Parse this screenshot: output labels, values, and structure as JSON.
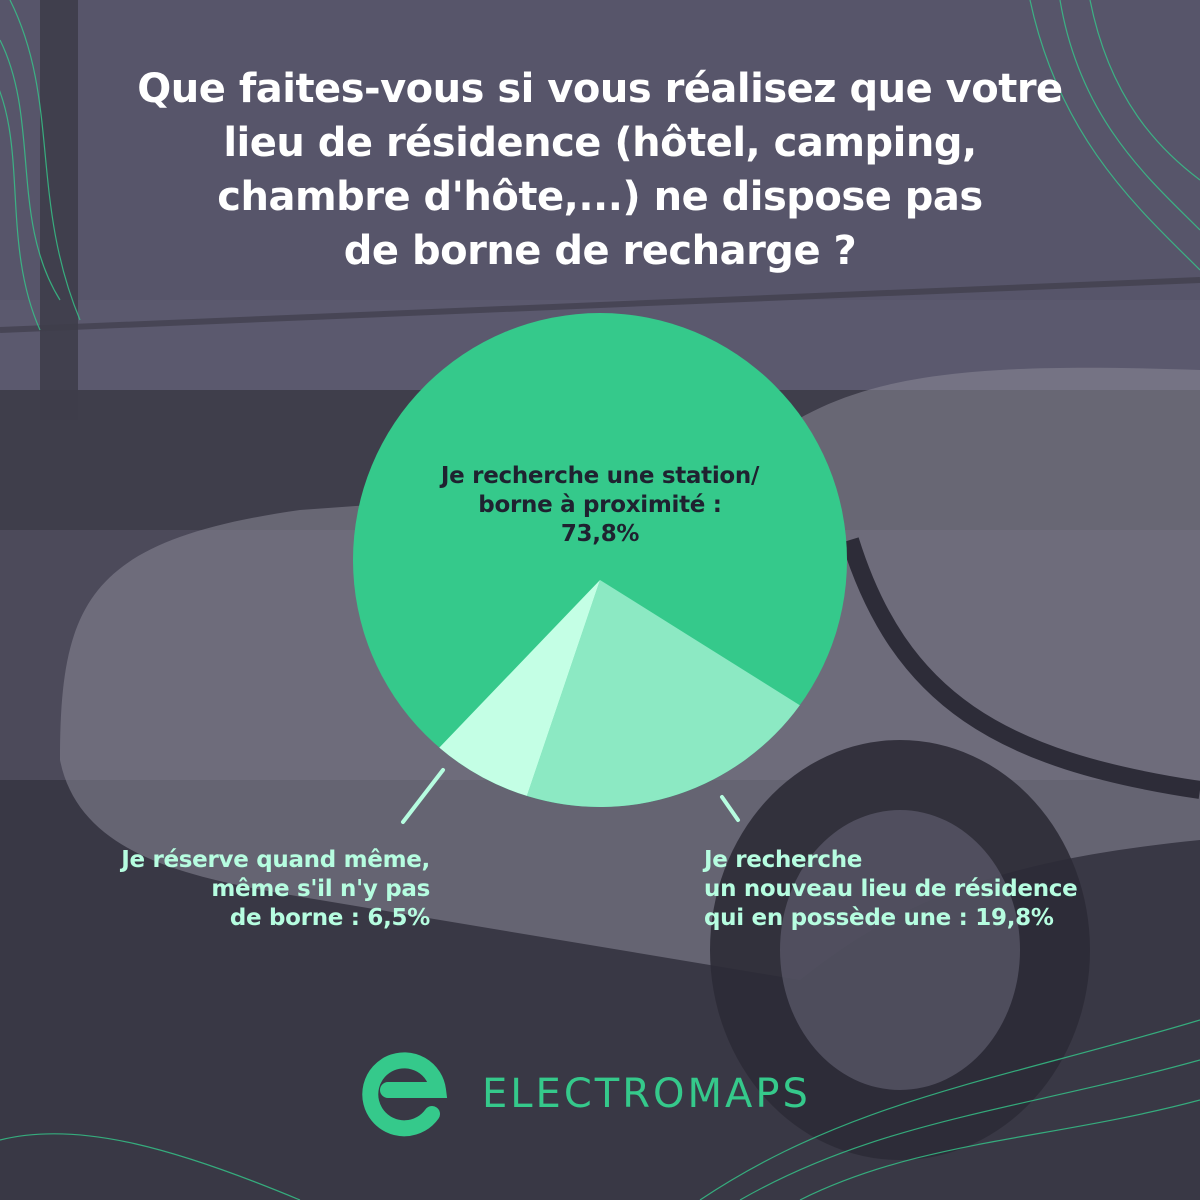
{
  "header": {
    "title_lines": [
      "Que faites-vous si vous réalisez que votre",
      "lieu de résidence (hôtel, camping,",
      "chambre d'hôte,...) ne dispose pas",
      "de borne de recharge ?"
    ]
  },
  "chart_data": {
    "type": "pie",
    "slices": [
      {
        "label": "Je recherche une station/ borne à proximité",
        "value": 73.8,
        "color": "#35c98b"
      },
      {
        "label": "Je recherche un nouveau lieu de résidence qui en possède une",
        "value": 19.8,
        "color": "#8ce9c3"
      },
      {
        "label": "Je réserve quand même, même s'il n'y pas de borne",
        "value": 6.5,
        "color": "#c4ffe5"
      }
    ]
  },
  "labels": {
    "main": [
      "Je recherche une station/",
      "borne à proximité :",
      "73,8%"
    ],
    "left": [
      "Je réserve quand même,",
      "même s'il n'y pas",
      "de borne : 6,5%"
    ],
    "right": [
      "Je recherche",
      "un nouveau lieu de résidence",
      "qui en possède une : 19,8%"
    ]
  },
  "colors": {
    "accent": "#35c98b",
    "label_light": "#b6fde0",
    "label_dark": "#1f2230",
    "overlay": "#4a4858"
  },
  "brand": {
    "name": "ELECTROMAPS",
    "icon": "electromaps-e-logo-icon"
  }
}
